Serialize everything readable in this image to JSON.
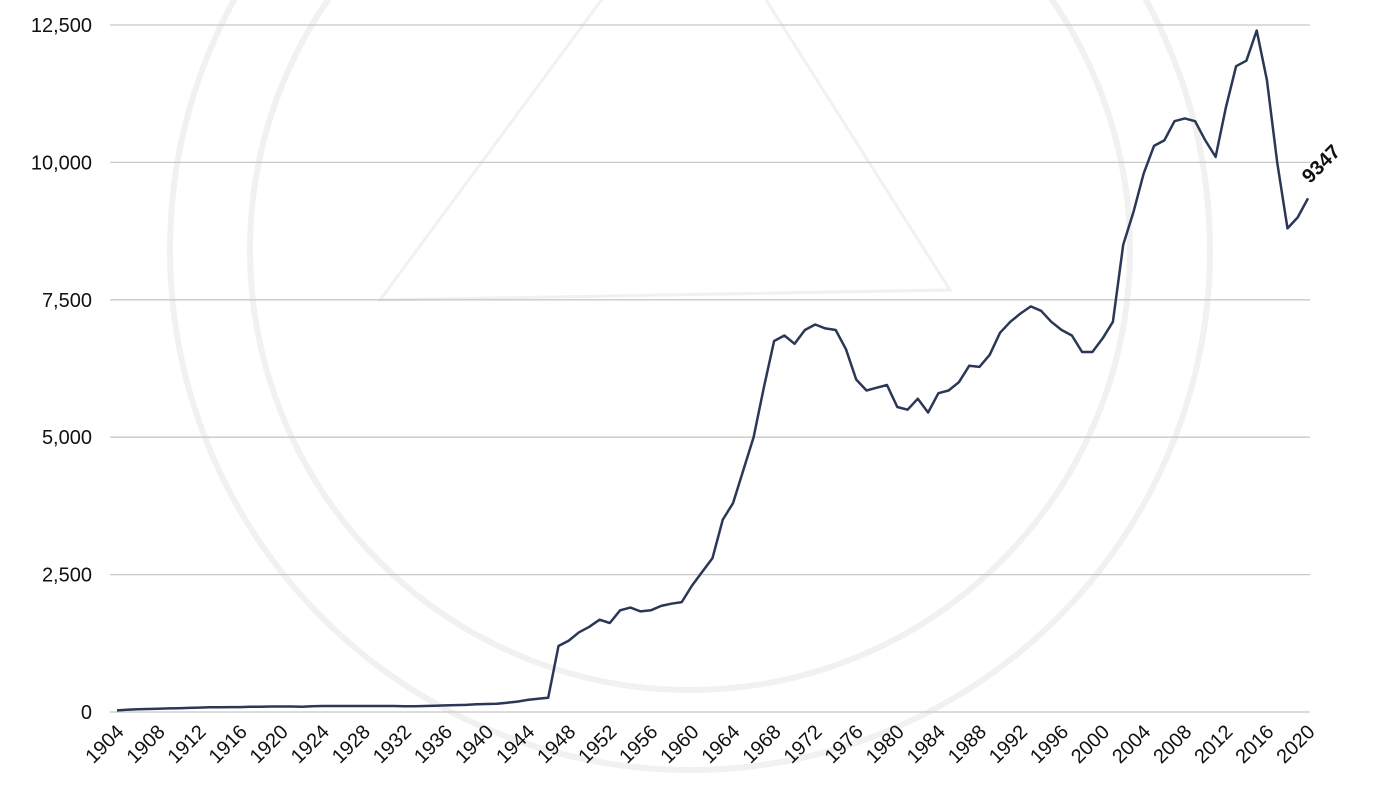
{
  "chart_data": {
    "type": "line",
    "x": [
      1904,
      1905,
      1906,
      1907,
      1908,
      1909,
      1910,
      1911,
      1912,
      1913,
      1914,
      1915,
      1916,
      1917,
      1918,
      1919,
      1920,
      1921,
      1922,
      1923,
      1924,
      1925,
      1926,
      1927,
      1928,
      1929,
      1930,
      1931,
      1932,
      1933,
      1934,
      1935,
      1936,
      1937,
      1938,
      1939,
      1940,
      1941,
      1942,
      1943,
      1944,
      1945,
      1946,
      1947,
      1948,
      1949,
      1950,
      1951,
      1952,
      1953,
      1954,
      1955,
      1956,
      1957,
      1958,
      1959,
      1960,
      1961,
      1962,
      1963,
      1964,
      1965,
      1966,
      1967,
      1968,
      1969,
      1970,
      1971,
      1972,
      1973,
      1974,
      1975,
      1976,
      1977,
      1978,
      1979,
      1980,
      1981,
      1982,
      1983,
      1984,
      1985,
      1986,
      1987,
      1988,
      1989,
      1990,
      1991,
      1992,
      1993,
      1994,
      1995,
      1996,
      1997,
      1998,
      1999,
      2000,
      2001,
      2002,
      2003,
      2004,
      2005,
      2006,
      2007,
      2008,
      2009,
      2010,
      2011,
      2012,
      2013,
      2014,
      2015,
      2016,
      2017,
      2018,
      2019,
      2020
    ],
    "series": [
      {
        "color": "#2b3756",
        "values": [
          30,
          40,
          50,
          55,
          60,
          65,
          70,
          75,
          80,
          85,
          85,
          90,
          90,
          95,
          95,
          100,
          100,
          100,
          95,
          105,
          110,
          110,
          110,
          110,
          110,
          110,
          110,
          110,
          105,
          105,
          110,
          115,
          120,
          125,
          130,
          140,
          145,
          150,
          170,
          190,
          220,
          240,
          260,
          1200,
          1300,
          1450,
          1550,
          1680,
          1620,
          1850,
          1900,
          1830,
          1850,
          1930,
          1970,
          2000,
          2300,
          2550,
          2800,
          3500,
          3800,
          4400,
          5000,
          5900,
          6750,
          6850,
          6700,
          6950,
          7050,
          6980,
          6950,
          6600,
          6050,
          5850,
          5900,
          5950,
          5550,
          5500,
          5700,
          5450,
          5800,
          5850,
          6000,
          6300,
          6280,
          6500,
          6900,
          7100,
          7250,
          7380,
          7300,
          7100,
          6950,
          6850,
          6550,
          6550,
          6800,
          7100,
          8500,
          9100,
          9800,
          10300,
          10400,
          10750,
          10800,
          10750,
          10400,
          10100,
          11000,
          11750,
          11850,
          12400,
          11500,
          10000,
          8800,
          9000,
          9347
        ]
      }
    ],
    "xlim": [
      1904,
      2020
    ],
    "xticks": [
      1904,
      1908,
      1912,
      1916,
      1920,
      1924,
      1928,
      1932,
      1936,
      1940,
      1944,
      1948,
      1952,
      1956,
      1960,
      1964,
      1968,
      1972,
      1976,
      1980,
      1984,
      1988,
      1992,
      1996,
      2000,
      2004,
      2008,
      2012,
      2016,
      2020
    ],
    "ylim": [
      0,
      12500
    ],
    "yticks": [
      0,
      {
        "value": 2500,
        "label": "2,500"
      },
      {
        "value": 5000,
        "label": "5,000"
      },
      {
        "value": 7500,
        "label": "7,500"
      },
      {
        "value": 10000,
        "label": "10,000"
      },
      {
        "value": 12500,
        "label": "12,500"
      }
    ],
    "grid": true
  }
}
